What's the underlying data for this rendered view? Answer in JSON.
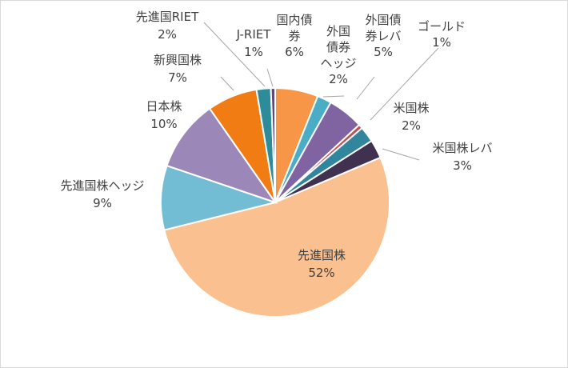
{
  "chart_data": {
    "type": "pie",
    "title": "",
    "slices": [
      {
        "name": "国内債券",
        "name_lines": [
          "国内債",
          "券"
        ],
        "percent_label": "6%",
        "value": 6,
        "color": "#f79646"
      },
      {
        "name": "外国債券ヘッジ",
        "name_lines": [
          "外国",
          "債券",
          "ヘッジ"
        ],
        "percent_label": "2%",
        "value": 2,
        "color": "#4bacc6"
      },
      {
        "name": "外国債券レバ",
        "name_lines": [
          "外国債",
          "券レバ"
        ],
        "percent_label": "5%",
        "value": 5,
        "color": "#8064a2"
      },
      {
        "name": "ゴールド",
        "name_lines": [
          "ゴールド"
        ],
        "percent_label": "1%",
        "value": 0.6,
        "color": "#c0504d"
      },
      {
        "name": "米国株",
        "name_lines": [
          "米国株"
        ],
        "percent_label": "2%",
        "value": 2.2,
        "color": "#31859c"
      },
      {
        "name": "米国株レバ",
        "name_lines": [
          "米国株レバ"
        ],
        "percent_label": "3%",
        "value": 2.6,
        "color": "#403151"
      },
      {
        "name": "先進国株",
        "name_lines": [
          "先進国株"
        ],
        "percent_label": "52%",
        "value": 52,
        "color": "#fac090"
      },
      {
        "name": "先進国株ヘッジ",
        "name_lines": [
          "先進国株ヘッジ"
        ],
        "percent_label": "9%",
        "value": 9,
        "color": "#72bcd4"
      },
      {
        "name": "日本株",
        "name_lines": [
          "日本株"
        ],
        "percent_label": "10%",
        "value": 10,
        "color": "#9b88b9"
      },
      {
        "name": "新興国株",
        "name_lines": [
          "新興国株"
        ],
        "percent_label": "7%",
        "value": 7,
        "color": "#f07c13"
      },
      {
        "name": "先進国RIET",
        "name_lines": [
          "先進国RIET"
        ],
        "percent_label": "2%",
        "value": 2,
        "color": "#2e8b9a"
      },
      {
        "name": "J-RIET",
        "name_lines": [
          "J-RIET"
        ],
        "percent_label": "1%",
        "value": 0.6,
        "color": "#5c4a7e"
      }
    ],
    "legend": "none",
    "start_angle_deg": 0,
    "direction": "clockwise"
  }
}
